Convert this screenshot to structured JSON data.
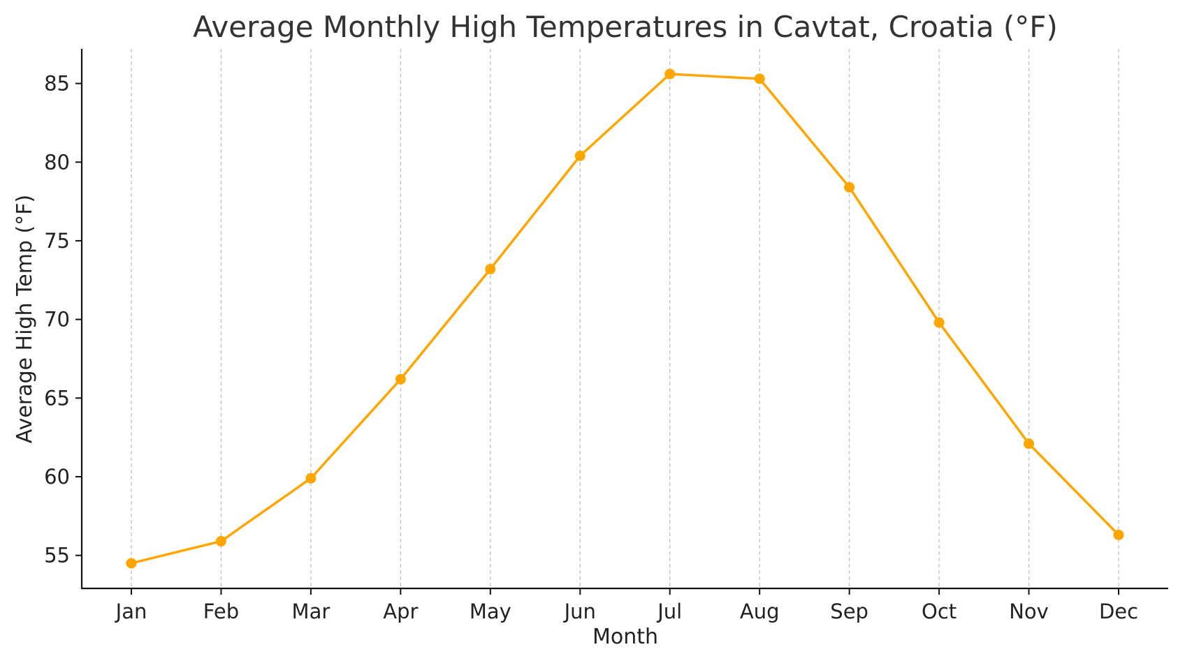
{
  "chart_data": {
    "type": "line",
    "title": "Average Monthly High Temperatures in Cavtat, Croatia (°F)",
    "xlabel": "Month",
    "ylabel": "Average High Temp (°F)",
    "categories": [
      "Jan",
      "Feb",
      "Mar",
      "Apr",
      "May",
      "Jun",
      "Jul",
      "Aug",
      "Sep",
      "Oct",
      "Nov",
      "Dec"
    ],
    "series": [
      {
        "name": "Average High Temp",
        "color": "#FFA500",
        "values": [
          54.5,
          55.9,
          59.9,
          66.2,
          73.2,
          80.4,
          85.6,
          85.3,
          78.4,
          69.8,
          62.1,
          56.3
        ]
      }
    ],
    "yticks": [
      55,
      60,
      65,
      70,
      75,
      80,
      85
    ],
    "ylim": [
      52.9,
      87.2
    ],
    "grid": "vertical-dashed",
    "markers": "circle"
  }
}
